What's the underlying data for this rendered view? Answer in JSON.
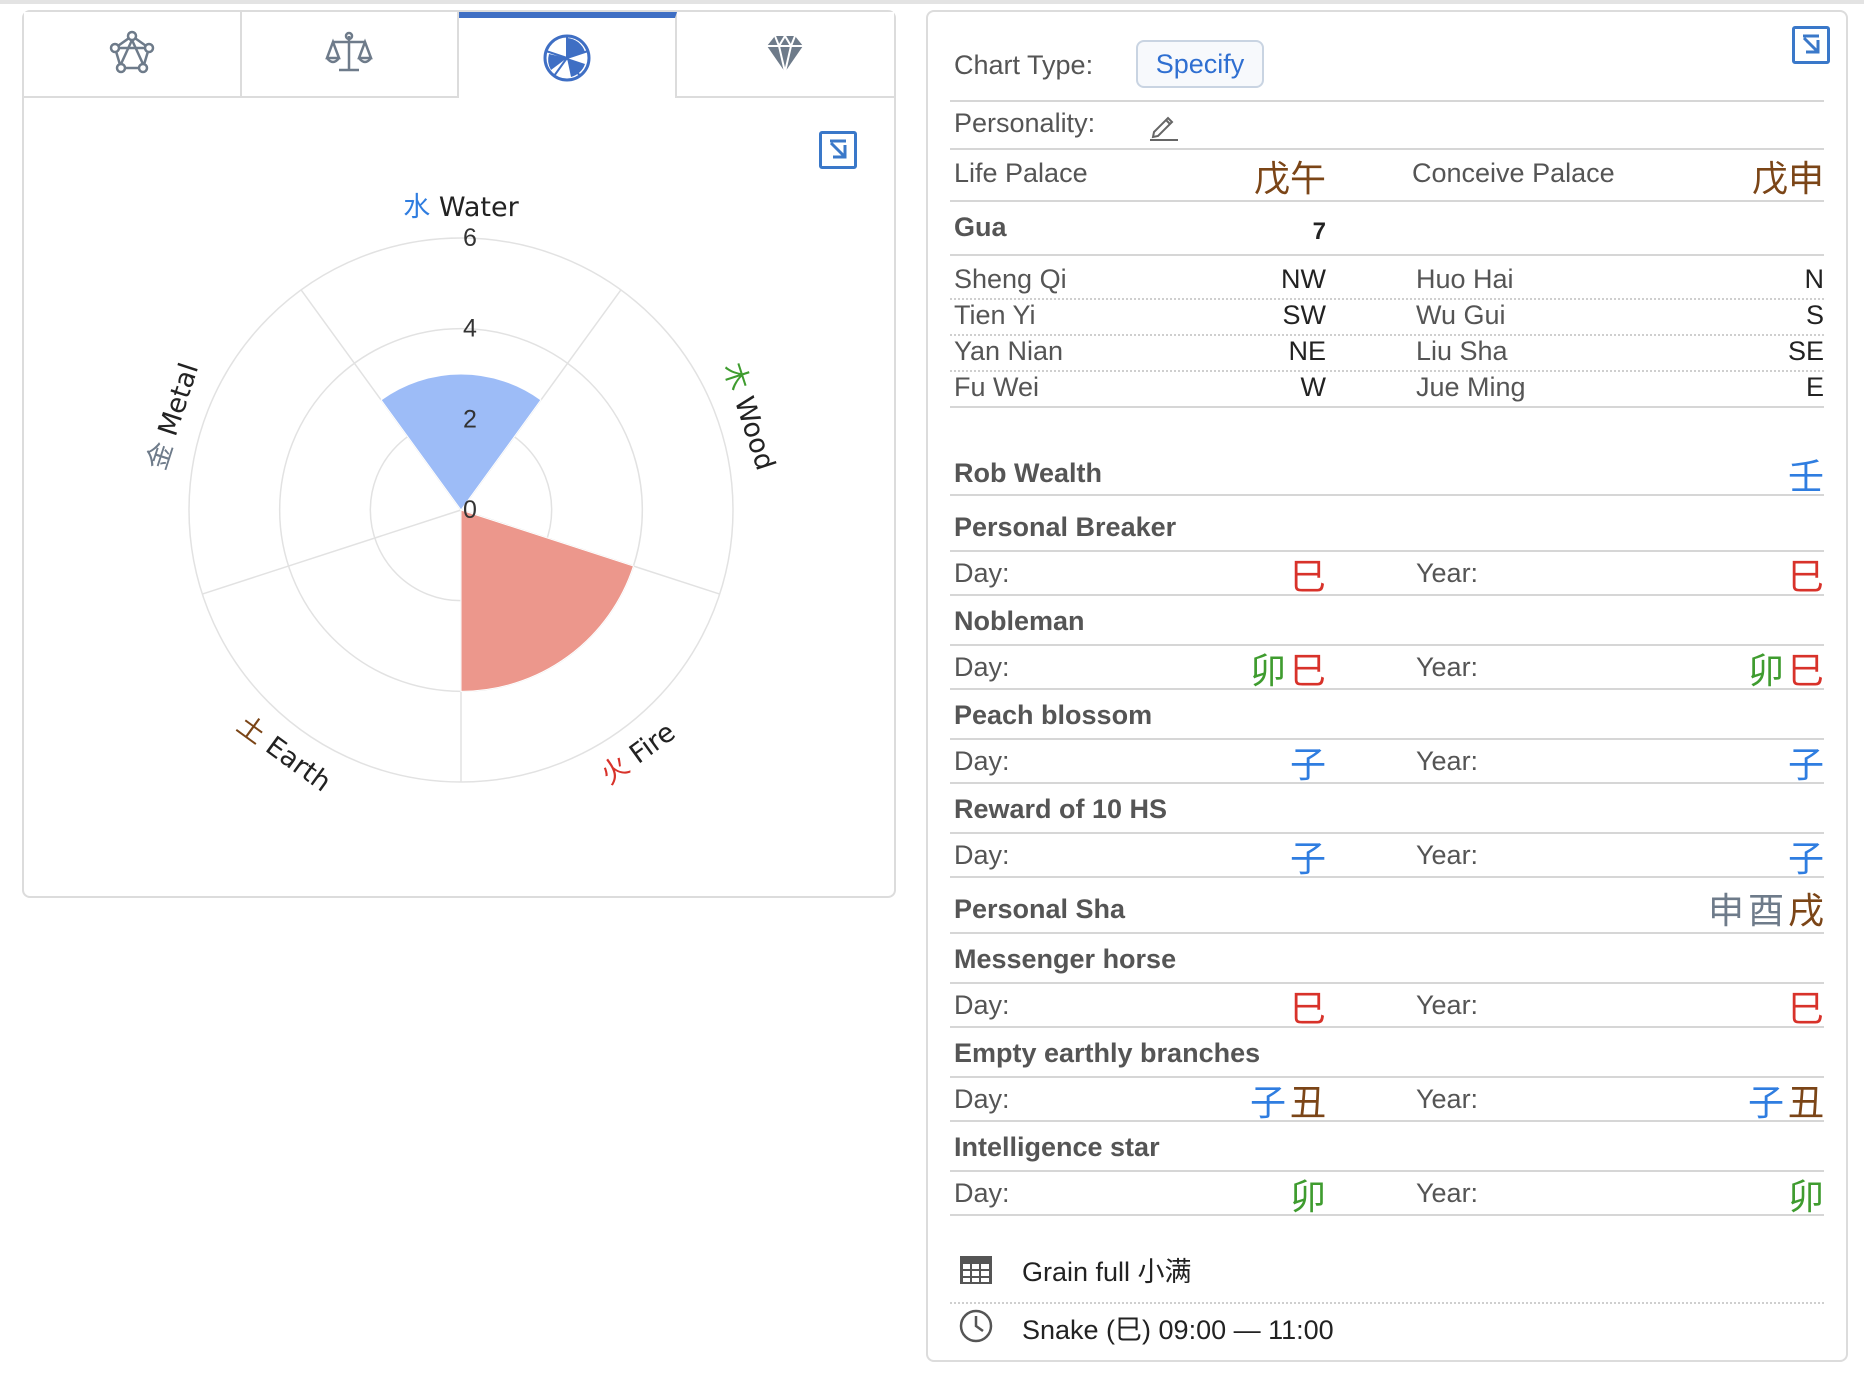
{
  "tabs": [
    {
      "name": "network",
      "icon": "network-icon"
    },
    {
      "name": "balance",
      "icon": "scale-icon"
    },
    {
      "name": "elements",
      "icon": "pie-chart-icon",
      "active": true
    },
    {
      "name": "gem",
      "icon": "diamond-icon"
    }
  ],
  "chart_data": {
    "type": "polar-area",
    "categories": [
      "Water",
      "Wood",
      "Fire",
      "Earth",
      "Metal"
    ],
    "category_glyphs": [
      "水",
      "木",
      "火",
      "土",
      "金"
    ],
    "values": [
      3,
      0,
      4,
      0,
      0
    ],
    "r_ticks": [
      "0",
      "2",
      "4",
      "6"
    ],
    "rmax": 6,
    "colors": {
      "Water": "#9dbcf7",
      "Fire": "#ec978c"
    },
    "glyph_colors": {
      "Water": "#2f7de0",
      "Wood": "#3f9c2f",
      "Fire": "#d8322a",
      "Earth": "#7b4517",
      "Metal": "#6e7b8a"
    }
  },
  "chart_type": {
    "label": "Chart Type:",
    "button": "Specify"
  },
  "personality": {
    "label": "Personality:"
  },
  "palaces": {
    "life_label": "Life Palace",
    "life_value": "戊午",
    "conceive_label": "Conceive Palace",
    "conceive_value": "戊申"
  },
  "gua": {
    "label": "Gua",
    "value": "7"
  },
  "directions": [
    {
      "l_label": "Sheng Qi",
      "l_value": "NW",
      "r_label": "Huo Hai",
      "r_value": "N"
    },
    {
      "l_label": "Tien Yi",
      "l_value": "SW",
      "r_label": "Wu Gui",
      "r_value": "S"
    },
    {
      "l_label": "Yan Nian",
      "l_value": "NE",
      "r_label": "Liu Sha",
      "r_value": "SE"
    },
    {
      "l_label": "Fu Wei",
      "l_value": "W",
      "r_label": "Jue Ming",
      "r_value": "E"
    }
  ],
  "rob_wealth": {
    "label": "Rob Wealth",
    "value": "壬"
  },
  "day_label": "Day:",
  "year_label": "Year:",
  "stars": [
    {
      "title": "Personal Breaker",
      "day": "巳",
      "year": "巳"
    },
    {
      "title": "Nobleman",
      "day": "卯巳",
      "year": "卯巳"
    },
    {
      "title": "Peach blossom",
      "day": "子",
      "year": "子"
    },
    {
      "title": "Reward of 10 HS",
      "day": "子",
      "year": "子"
    }
  ],
  "personal_sha": {
    "label": "Personal Sha",
    "value": "申酉戌"
  },
  "stars2": [
    {
      "title": "Messenger horse",
      "day": "巳",
      "year": "巳"
    },
    {
      "title": "Empty earthly branches",
      "day": "子丑",
      "year": "子丑"
    },
    {
      "title": "Intelligence star",
      "day": "卯",
      "year": "卯"
    }
  ],
  "footer": {
    "solar_term": "Grain full 小满",
    "hour": "Snake (巳) 09:00 — 11:00"
  }
}
